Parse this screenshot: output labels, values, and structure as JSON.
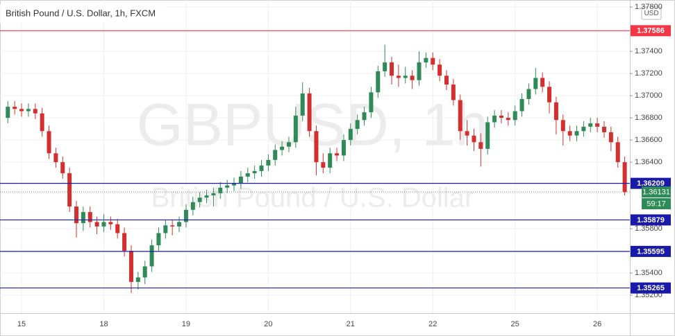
{
  "chart_data": {
    "type": "candlestick",
    "title": "British Pound / U.S. Dollar, 1h, FXCM",
    "watermark": "GBPUSD, 1h",
    "watermark_subtitle": "British Pound / U.S. Dollar",
    "currency": "USD",
    "categories": [
      null,
      null,
      "15",
      null,
      null,
      null,
      null,
      null,
      null,
      null,
      null,
      null,
      null,
      null,
      "18",
      null,
      null,
      null,
      null,
      null,
      null,
      null,
      null,
      null,
      null,
      null,
      "19",
      null,
      null,
      null,
      null,
      null,
      null,
      null,
      null,
      null,
      null,
      null,
      "20",
      null,
      null,
      null,
      null,
      null,
      null,
      null,
      null,
      null,
      null,
      null,
      "21",
      null,
      null,
      null,
      null,
      null,
      null,
      null,
      null,
      null,
      null,
      null,
      "22",
      null,
      null,
      null,
      null,
      null,
      null,
      null,
      null,
      null,
      null,
      null,
      "25",
      null,
      null,
      null,
      null,
      null,
      null,
      null,
      null,
      null,
      null,
      null,
      "26",
      null,
      null,
      null,
      null
    ],
    "open": [
      1.368,
      1.369,
      1.3688,
      1.3686,
      1.3688,
      1.3684,
      1.3668,
      1.3648,
      1.364,
      1.363,
      1.36,
      1.3585,
      1.3595,
      1.3586,
      1.3582,
      1.3586,
      1.3584,
      1.3576,
      1.356,
      1.3532,
      1.3536,
      1.3546,
      1.3565,
      1.3576,
      1.3583,
      1.3582,
      1.3586,
      1.3597,
      1.3604,
      1.3608,
      1.361,
      1.3612,
      1.3617,
      1.3619,
      1.3621,
      1.3627,
      1.363,
      1.3632,
      1.3637,
      1.3642,
      1.3651,
      1.3654,
      1.3658,
      1.3682,
      1.3702,
      1.3668,
      1.364,
      1.3635,
      1.3648,
      1.3646,
      1.366,
      1.367,
      1.3678,
      1.3685,
      1.3703,
      1.3722,
      1.373,
      1.3718,
      1.3716,
      1.3718,
      1.3714,
      1.373,
      1.3734,
      1.3728,
      1.3718,
      1.371,
      1.3696,
      1.3668,
      1.3664,
      1.3658,
      1.3652,
      1.3676,
      1.3682,
      1.368,
      1.3678,
      1.3686,
      1.3697,
      1.3706,
      1.3716,
      1.3708,
      1.3694,
      1.3678,
      1.3668,
      1.3664,
      1.3668,
      1.3672,
      1.3675,
      1.3672,
      1.3667,
      1.3658,
      1.364
    ],
    "high": [
      1.3695,
      1.3695,
      1.3693,
      1.3693,
      1.3693,
      1.3689,
      1.3673,
      1.3653,
      1.3645,
      1.3635,
      1.3605,
      1.36,
      1.36,
      1.3591,
      1.3593,
      1.3591,
      1.3589,
      1.3581,
      1.3565,
      1.3541,
      1.3551,
      1.357,
      1.3581,
      1.3588,
      1.3588,
      1.3591,
      1.3602,
      1.3609,
      1.3613,
      1.3615,
      1.3617,
      1.3622,
      1.3624,
      1.3626,
      1.3632,
      1.3635,
      1.3637,
      1.3642,
      1.3647,
      1.3656,
      1.3659,
      1.3663,
      1.369,
      1.3712,
      1.3707,
      1.3673,
      1.3648,
      1.3653,
      1.3653,
      1.3665,
      1.3675,
      1.3683,
      1.369,
      1.3708,
      1.3727,
      1.3746,
      1.3735,
      1.3728,
      1.3726,
      1.3723,
      1.374,
      1.3739,
      1.3739,
      1.3733,
      1.3723,
      1.3715,
      1.3701,
      1.3678,
      1.367,
      1.3666,
      1.3681,
      1.3687,
      1.3687,
      1.3685,
      1.3691,
      1.3702,
      1.3711,
      1.3725,
      1.3721,
      1.3713,
      1.3699,
      1.3683,
      1.3673,
      1.3673,
      1.3677,
      1.368,
      1.368,
      1.3677,
      1.3672,
      1.3663,
      1.3645
    ],
    "low": [
      1.3675,
      1.3683,
      1.3681,
      1.3681,
      1.3679,
      1.3663,
      1.3643,
      1.3635,
      1.3625,
      1.3595,
      1.3572,
      1.3578,
      1.3581,
      1.3575,
      1.3577,
      1.3579,
      1.3571,
      1.3555,
      1.3522,
      1.3525,
      1.353,
      1.3541,
      1.356,
      1.3571,
      1.3574,
      1.3577,
      1.3581,
      1.3592,
      1.3599,
      1.3603,
      1.36,
      1.3607,
      1.3612,
      1.3614,
      1.3616,
      1.3622,
      1.3625,
      1.3627,
      1.3632,
      1.3637,
      1.3646,
      1.3649,
      1.3653,
      1.3677,
      1.3663,
      1.3628,
      1.363,
      1.363,
      1.3641,
      1.3641,
      1.3655,
      1.3665,
      1.3673,
      1.368,
      1.3698,
      1.3717,
      1.371,
      1.3708,
      1.3711,
      1.3706,
      1.3709,
      1.3725,
      1.3723,
      1.3713,
      1.3705,
      1.3691,
      1.366,
      1.3655,
      1.365,
      1.3636,
      1.3647,
      1.3671,
      1.3675,
      1.3673,
      1.3673,
      1.3681,
      1.3692,
      1.3701,
      1.3703,
      1.3684,
      1.3665,
      1.3655,
      1.3659,
      1.3659,
      1.3663,
      1.3667,
      1.3667,
      1.3662,
      1.365,
      1.3635,
      1.361
    ],
    "close": [
      1.369,
      1.3688,
      1.3686,
      1.3688,
      1.3684,
      1.3668,
      1.3648,
      1.364,
      1.363,
      1.36,
      1.3585,
      1.3595,
      1.3586,
      1.3582,
      1.3586,
      1.3584,
      1.3576,
      1.356,
      1.3532,
      1.3536,
      1.3546,
      1.3565,
      1.3576,
      1.3583,
      1.3582,
      1.3586,
      1.3597,
      1.3604,
      1.3608,
      1.361,
      1.3612,
      1.3617,
      1.3619,
      1.3621,
      1.3627,
      1.363,
      1.3632,
      1.3637,
      1.3642,
      1.3651,
      1.3654,
      1.3658,
      1.3682,
      1.3702,
      1.3668,
      1.364,
      1.3635,
      1.3648,
      1.3646,
      1.366,
      1.367,
      1.3678,
      1.3685,
      1.3703,
      1.3722,
      1.373,
      1.3718,
      1.3716,
      1.3718,
      1.3714,
      1.373,
      1.3734,
      1.3728,
      1.3718,
      1.371,
      1.3696,
      1.3668,
      1.3664,
      1.3658,
      1.3652,
      1.3676,
      1.3682,
      1.368,
      1.3678,
      1.3686,
      1.3697,
      1.3706,
      1.3716,
      1.3708,
      1.3694,
      1.3678,
      1.3668,
      1.3664,
      1.3668,
      1.3672,
      1.3675,
      1.3672,
      1.3667,
      1.3658,
      1.364,
      1.3613
    ],
    "up_color": "#2e8b57",
    "down_color": "#d32f2f",
    "ylim": [
      1.35038,
      1.37863
    ],
    "yticks": [
      {
        "value": 1.378,
        "label": "1.37800"
      },
      {
        "value": 1.374,
        "label": "1.37400"
      },
      {
        "value": 1.372,
        "label": "1.37200"
      },
      {
        "value": 1.37,
        "label": "1.37000"
      },
      {
        "value": 1.368,
        "label": "1.36800"
      },
      {
        "value": 1.366,
        "label": "1.36600"
      },
      {
        "value": 1.364,
        "label": "1.36400"
      },
      {
        "value": 1.358,
        "label": "1.35800"
      },
      {
        "value": 1.354,
        "label": "1.35400"
      },
      {
        "value": 1.352,
        "label": "1.35200"
      }
    ],
    "grid": true,
    "levels": [
      {
        "value": 1.37586,
        "color": "#f23645"
      },
      {
        "value": 1.36209,
        "color": "#1a1aa8"
      },
      {
        "value": 1.35879,
        "color": "#1a1aa8"
      },
      {
        "value": 1.35595,
        "color": "#1a1aa8"
      },
      {
        "value": 1.35265,
        "color": "#1a1aa8"
      }
    ],
    "current": {
      "value": 1.36131,
      "countdown": "59:17",
      "color": "#2e8b57"
    }
  }
}
